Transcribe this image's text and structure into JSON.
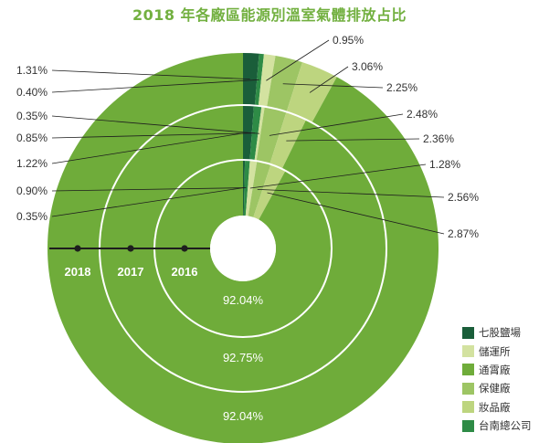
{
  "title": "2018 年各廠區能源別溫室氣體排放占比",
  "colors": {
    "七股鹽場": "#1a5e3a",
    "儲運所": "#d3e2a0",
    "通霄廠": "#6fac3a",
    "保健廠": "#9dc564",
    "妝品廠": "#bdd57f",
    "台南總公司": "#2e8b46"
  },
  "chart_data": {
    "type": "pie",
    "title": "2018 年各廠區能源別溫室氣體排放占比",
    "rings": [
      {
        "year": "2016",
        "values": [
          {
            "name": "七股鹽場",
            "value": 0.35
          },
          {
            "name": "台南總公司",
            "value": 0.9
          },
          {
            "name": "儲運所",
            "value": 1.28
          },
          {
            "name": "保健廠",
            "value": 2.56
          },
          {
            "name": "妝品廠",
            "value": 2.87
          },
          {
            "name": "通霄廠",
            "value": 92.04
          }
        ]
      },
      {
        "year": "2017",
        "values": [
          {
            "name": "七股鹽場",
            "value": 1.22
          },
          {
            "name": "台南總公司",
            "value": 0.85
          },
          {
            "name": "儲運所",
            "value": 0.35
          },
          {
            "name": "保健廠",
            "value": 2.48
          },
          {
            "name": "妝品廠",
            "value": 2.36
          },
          {
            "name": "通霄廠",
            "value": 92.75
          }
        ]
      },
      {
        "year": "2018",
        "values": [
          {
            "name": "七股鹽場",
            "value": 1.31
          },
          {
            "name": "台南總公司",
            "value": 0.4
          },
          {
            "name": "儲運所",
            "value": 0.95
          },
          {
            "name": "保健廠",
            "value": 2.25
          },
          {
            "name": "妝品廠",
            "value": 3.06
          },
          {
            "name": "通霄廠",
            "value": 92.04
          }
        ]
      }
    ],
    "left_labels": [
      "1.31%",
      "0.40%",
      "0.35%",
      "0.85%",
      "1.22%",
      "0.90%",
      "0.35%"
    ],
    "right_labels": [
      "0.95%",
      "3.06%",
      "2.25%",
      "2.48%",
      "2.36%",
      "1.28%",
      "2.56%",
      "2.87%"
    ],
    "ring_center_labels": [
      "92.04%",
      "92.75%",
      "92.04%"
    ],
    "year_labels": [
      "2018",
      "2017",
      "2016"
    ],
    "legend": [
      "七股鹽場",
      "儲運所",
      "通霄廠",
      "保健廠",
      "妝品廠",
      "台南總公司"
    ]
  }
}
